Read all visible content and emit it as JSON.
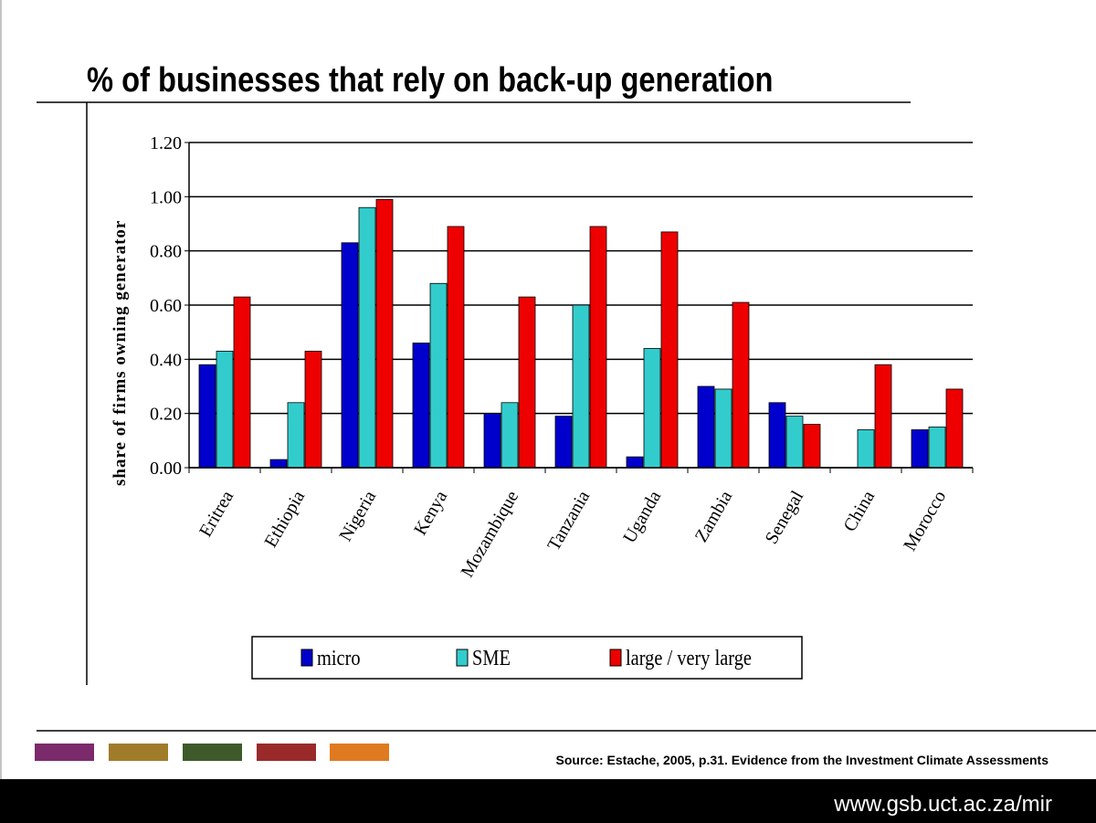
{
  "slide": {
    "title": "% of businesses that rely on back-up generation"
  },
  "chart_data": {
    "type": "bar",
    "y_label": "share of firms owning generator",
    "categories": [
      "Eritrea",
      "Ethiopia",
      "Nigeria",
      "Kenya",
      "Mozambique",
      "Tanzania",
      "Uganda",
      "Zambia",
      "Senegal",
      "China",
      "Morocco"
    ],
    "series": [
      {
        "name": "micro",
        "color": "#0000cc",
        "values": [
          0.38,
          0.03,
          0.83,
          0.46,
          0.2,
          0.19,
          0.04,
          0.3,
          0.24,
          null,
          0.14
        ]
      },
      {
        "name": "SME",
        "color": "#33cccc",
        "values": [
          0.43,
          0.24,
          0.96,
          0.68,
          0.24,
          0.6,
          0.44,
          0.29,
          0.19,
          0.14,
          0.15
        ]
      },
      {
        "name": "large / very large",
        "color": "#ee0000",
        "values": [
          0.63,
          0.43,
          0.99,
          0.89,
          0.63,
          0.89,
          0.87,
          0.61,
          0.16,
          0.38,
          0.29
        ]
      }
    ],
    "ylim": [
      0,
      1.2
    ],
    "yticks": [
      {
        "value": 0,
        "label": "0.00"
      },
      {
        "value": 0.2,
        "label": "0.20"
      },
      {
        "value": 0.4,
        "label": "0.40"
      },
      {
        "value": 0.6,
        "label": "0.60"
      },
      {
        "value": 0.8,
        "label": "0.80"
      },
      {
        "value": 1,
        "label": "1.00"
      },
      {
        "value": 1.2,
        "label": "1.20"
      }
    ],
    "grid": true,
    "legend": "bottom"
  },
  "footer": {
    "source": "Source: Estache, 2005, p.31. Evidence from the Investment Climate Assessments",
    "url": "www.gsb.uct.ac.za/mir"
  }
}
